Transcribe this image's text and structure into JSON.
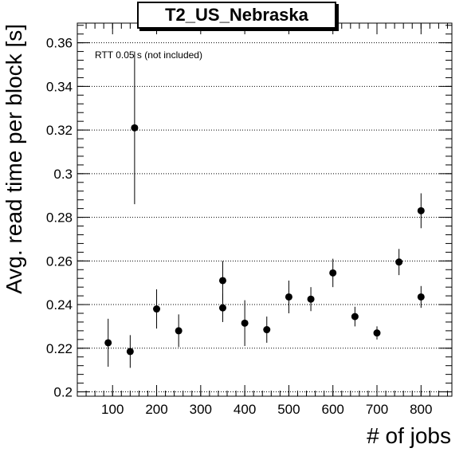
{
  "chart_data": {
    "type": "scatter",
    "title": "T2_US_Nebraska",
    "annotation": "RTT 0.05 s (not included)",
    "xlabel": "# of jobs",
    "ylabel": "Avg. read time per block [s]",
    "xlim": [
      20,
      870
    ],
    "ylim": [
      0.198,
      0.369
    ],
    "xticks": [
      100,
      200,
      300,
      400,
      500,
      600,
      700,
      800
    ],
    "yticks": [
      0.2,
      0.22,
      0.24,
      0.26,
      0.28,
      0.3,
      0.32,
      0.34,
      0.36
    ],
    "ytick_labels": [
      "0.2",
      "0.22",
      "0.24",
      "0.26",
      "0.28",
      "0.3",
      "0.32",
      "0.34",
      "0.36"
    ],
    "grid_y": true,
    "grid_x": false,
    "points": [
      {
        "x": 90,
        "y": 0.2225,
        "err": 0.011
      },
      {
        "x": 140,
        "y": 0.2185,
        "err": 0.0075
      },
      {
        "x": 150,
        "y": 0.321,
        "err": 0.035
      },
      {
        "x": 200,
        "y": 0.238,
        "err": 0.009
      },
      {
        "x": 250,
        "y": 0.228,
        "err": 0.0075
      },
      {
        "x": 350,
        "y": 0.251,
        "err": 0.009
      },
      {
        "x": 350,
        "y": 0.2385,
        "err": 0.0065
      },
      {
        "x": 400,
        "y": 0.2315,
        "err": 0.0105
      },
      {
        "x": 450,
        "y": 0.2285,
        "err": 0.006
      },
      {
        "x": 500,
        "y": 0.2435,
        "err": 0.0075
      },
      {
        "x": 550,
        "y": 0.2425,
        "err": 0.0055
      },
      {
        "x": 600,
        "y": 0.2545,
        "err": 0.0065
      },
      {
        "x": 650,
        "y": 0.2345,
        "err": 0.0045
      },
      {
        "x": 700,
        "y": 0.227,
        "err": 0.003
      },
      {
        "x": 750,
        "y": 0.2595,
        "err": 0.006
      },
      {
        "x": 800,
        "y": 0.283,
        "err": 0.008
      },
      {
        "x": 800,
        "y": 0.2435,
        "err": 0.005
      }
    ]
  }
}
